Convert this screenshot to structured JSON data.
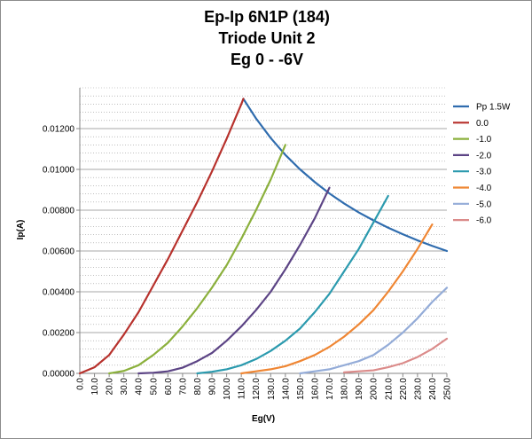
{
  "chart_data": {
    "type": "line",
    "title": [
      "Ep-Ip 6N1P (184)",
      "Triode Unit 2",
      "Eg 0 - -6V"
    ],
    "xlabel": "Eg(V)",
    "ylabel": "Ip(A)",
    "xlim": [
      0,
      250
    ],
    "ylim": [
      0,
      0.014
    ],
    "x_ticks": [
      0,
      10,
      20,
      30,
      40,
      50,
      60,
      70,
      80,
      90,
      100,
      110,
      120,
      130,
      140,
      150,
      160,
      170,
      180,
      190,
      200,
      210,
      220,
      230,
      240,
      250
    ],
    "x_tick_labels": [
      "0.0",
      "10.0",
      "20.0",
      "30.0",
      "40.0",
      "50.0",
      "60.0",
      "70.0",
      "80.0",
      "90.0",
      "100.0",
      "110.0",
      "120.0",
      "130.0",
      "140.0",
      "150.0",
      "160.0",
      "170.0",
      "180.0",
      "190.0",
      "200.0",
      "210.0",
      "220.0",
      "230.0",
      "240.0",
      "250.0"
    ],
    "y_ticks": [
      0,
      0.002,
      0.004,
      0.006,
      0.008,
      0.01,
      0.012
    ],
    "y_tick_labels": [
      "0.00000",
      "0.00200",
      "0.00400",
      "0.00600",
      "0.00800",
      "0.01000",
      "0.01200"
    ],
    "grid": {
      "major_y": true,
      "minor_y_step": 0.0004,
      "x": false
    },
    "legend_position": "right",
    "series": [
      {
        "name": "Pp  1.5W",
        "color": "#2f6cae",
        "x": [
          111.4,
          120,
          130,
          140,
          150,
          160,
          170,
          180,
          190,
          200,
          210,
          220,
          230,
          240,
          250
        ],
        "y": [
          0.01346,
          0.0125,
          0.01154,
          0.01071,
          0.01,
          0.00938,
          0.00882,
          0.00833,
          0.00789,
          0.0075,
          0.00714,
          0.00682,
          0.00652,
          0.00625,
          0.006
        ]
      },
      {
        "name": "0.0",
        "color": "#b7312c",
        "x": [
          0,
          10,
          20,
          30,
          40,
          50,
          60,
          70,
          80,
          90,
          100,
          110,
          111.4
        ],
        "y": [
          0,
          0.0003,
          0.0009,
          0.0019,
          0.003,
          0.0043,
          0.0056,
          0.007,
          0.0084,
          0.0099,
          0.0115,
          0.0132,
          0.01346
        ]
      },
      {
        "name": "-1.0",
        "color": "#8bb03c",
        "x": [
          20,
          30,
          40,
          50,
          60,
          70,
          80,
          90,
          100,
          110,
          120,
          130,
          140
        ],
        "y": [
          0,
          0.00012,
          0.0004,
          0.0009,
          0.0015,
          0.0023,
          0.0032,
          0.0042,
          0.0053,
          0.0066,
          0.008,
          0.0095,
          0.0112
        ]
      },
      {
        "name": "-2.0",
        "color": "#5c4485",
        "x": [
          40,
          50,
          60,
          70,
          80,
          90,
          100,
          110,
          120,
          130,
          140,
          150,
          160,
          170
        ],
        "y": [
          0,
          3e-05,
          0.0001,
          0.00028,
          0.0006,
          0.001,
          0.0016,
          0.0023,
          0.0031,
          0.004,
          0.0051,
          0.0063,
          0.0076,
          0.0091
        ]
      },
      {
        "name": "-3.0",
        "color": "#2b9aae",
        "x": [
          80,
          90,
          100,
          110,
          120,
          130,
          140,
          150,
          160,
          170,
          180,
          190,
          200,
          210
        ],
        "y": [
          0,
          8e-05,
          0.0002,
          0.0004,
          0.0007,
          0.0011,
          0.0016,
          0.0022,
          0.003,
          0.0039,
          0.005,
          0.0061,
          0.0074,
          0.0087
        ]
      },
      {
        "name": "-4.0",
        "color": "#ef8633",
        "x": [
          110,
          120,
          130,
          140,
          150,
          160,
          170,
          180,
          190,
          200,
          210,
          220,
          230,
          240
        ],
        "y": [
          0,
          0.0001,
          0.0002,
          0.00035,
          0.0006,
          0.0009,
          0.0013,
          0.0018,
          0.0024,
          0.0031,
          0.004,
          0.005,
          0.0061,
          0.0073
        ]
      },
      {
        "name": "-5.0",
        "color": "#94acd8",
        "x": [
          150,
          160,
          170,
          180,
          190,
          200,
          210,
          220,
          230,
          240,
          250
        ],
        "y": [
          0,
          0.0001,
          0.0002,
          0.0004,
          0.0006,
          0.0009,
          0.0014,
          0.002,
          0.0027,
          0.0035,
          0.0042
        ]
      },
      {
        "name": "-6.0",
        "color": "#db8b8a",
        "x": [
          180,
          190,
          200,
          210,
          220,
          230,
          240,
          250
        ],
        "y": [
          5e-05,
          0.0001,
          0.00015,
          0.0003,
          0.0005,
          0.0008,
          0.0012,
          0.0017
        ]
      }
    ]
  }
}
